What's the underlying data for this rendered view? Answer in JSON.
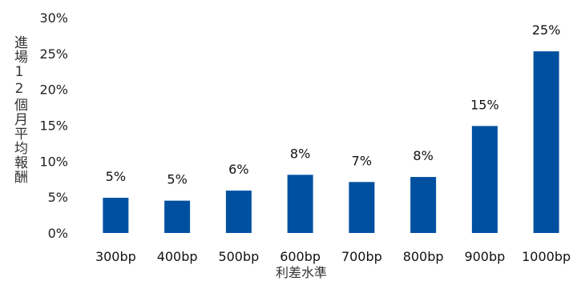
{
  "chart_data": {
    "type": "bar",
    "title": "",
    "xlabel": "利差水準",
    "ylabel": "進場12個月平均報酬",
    "categories": [
      "300bp",
      "400bp",
      "500bp",
      "600bp",
      "700bp",
      "800bp",
      "900bp",
      "1000bp"
    ],
    "values": [
      5,
      5,
      6,
      8,
      7,
      8,
      15,
      25
    ],
    "bar_values": [
      4.9,
      4.5,
      5.9,
      8.1,
      7.1,
      7.8,
      14.9,
      25.3
    ],
    "data_labels": [
      "5%",
      "5%",
      "6%",
      "8%",
      "7%",
      "8%",
      "15%",
      "25%"
    ],
    "ylim": [
      0,
      30
    ],
    "yticks": [
      "0%",
      "5%",
      "10%",
      "15%",
      "20%",
      "25%",
      "30%"
    ],
    "grid": false,
    "legend": "none",
    "bar_color": "#0050A0"
  }
}
